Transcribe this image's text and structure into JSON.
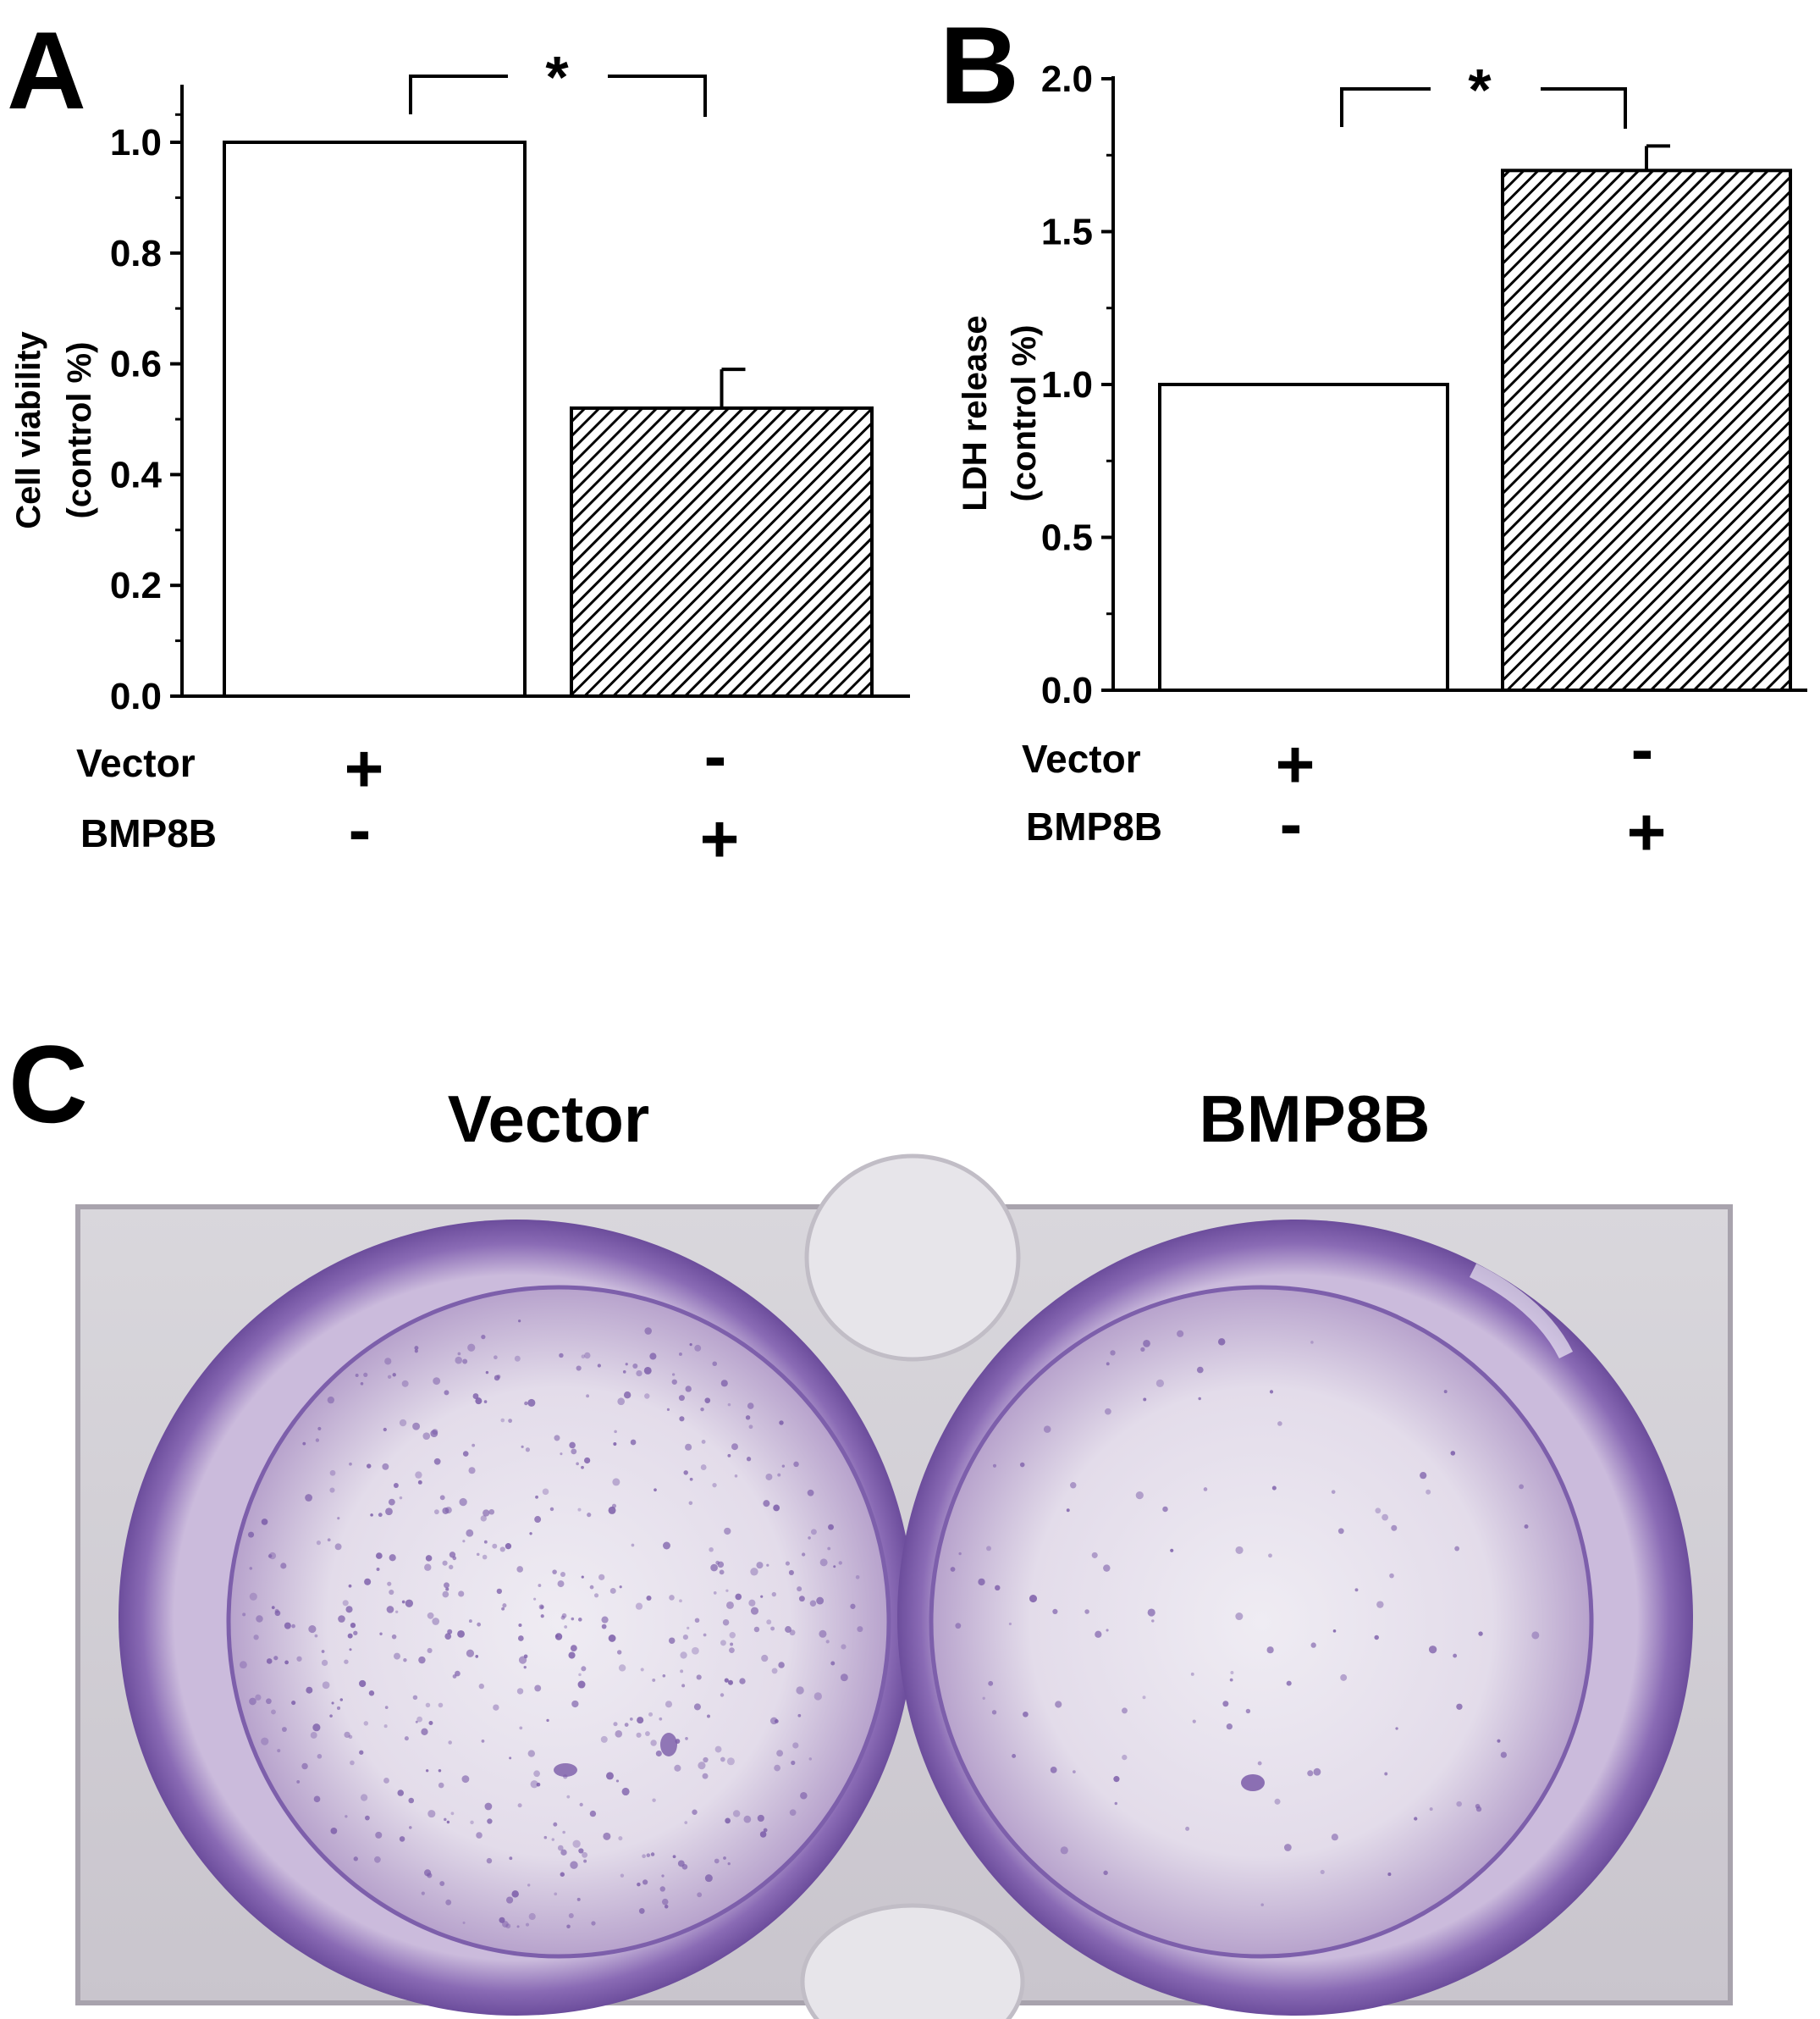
{
  "chart_data": [
    {
      "panel": "A",
      "type": "bar",
      "categories": [
        "Vector",
        "BMP8B"
      ],
      "values": [
        1.0,
        0.52
      ],
      "errors": [
        0,
        0.07
      ],
      "fills": [
        "white",
        "hatched"
      ],
      "ylabel_line1": "Cell viability",
      "ylabel_line2": "(control %)",
      "ylim": [
        0,
        1.1
      ],
      "yticks": [
        "0.0",
        "0.2",
        "0.4",
        "0.6",
        "0.8",
        "1.0"
      ],
      "ytick_values": [
        0,
        0.2,
        0.4,
        0.6,
        0.8,
        1.0
      ],
      "significance": "*",
      "conditions": [
        {
          "label": "Vector",
          "signs": [
            "+",
            "-"
          ]
        },
        {
          "label": "BMP8B",
          "signs": [
            "-",
            "+"
          ]
        }
      ]
    },
    {
      "panel": "B",
      "type": "bar",
      "categories": [
        "Vector",
        "BMP8B"
      ],
      "values": [
        1.0,
        1.7
      ],
      "errors": [
        0,
        0.08
      ],
      "fills": [
        "white",
        "hatched"
      ],
      "ylabel_line1": "LDH release",
      "ylabel_line2": "(control %)",
      "ylim": [
        0,
        2.0
      ],
      "yticks": [
        "0.0",
        "0.5",
        "1.0",
        "1.5",
        "2.0"
      ],
      "ytick_values": [
        0,
        0.5,
        1.0,
        1.5,
        2.0
      ],
      "significance": "*",
      "conditions": [
        {
          "label": "Vector",
          "signs": [
            "+",
            "-"
          ]
        },
        {
          "label": "BMP8B",
          "signs": [
            "-",
            "+"
          ]
        }
      ]
    }
  ],
  "panel_c": {
    "letter": "C",
    "titles": [
      "Vector",
      "BMP8B"
    ],
    "stain_color": "#7a5ba8"
  }
}
